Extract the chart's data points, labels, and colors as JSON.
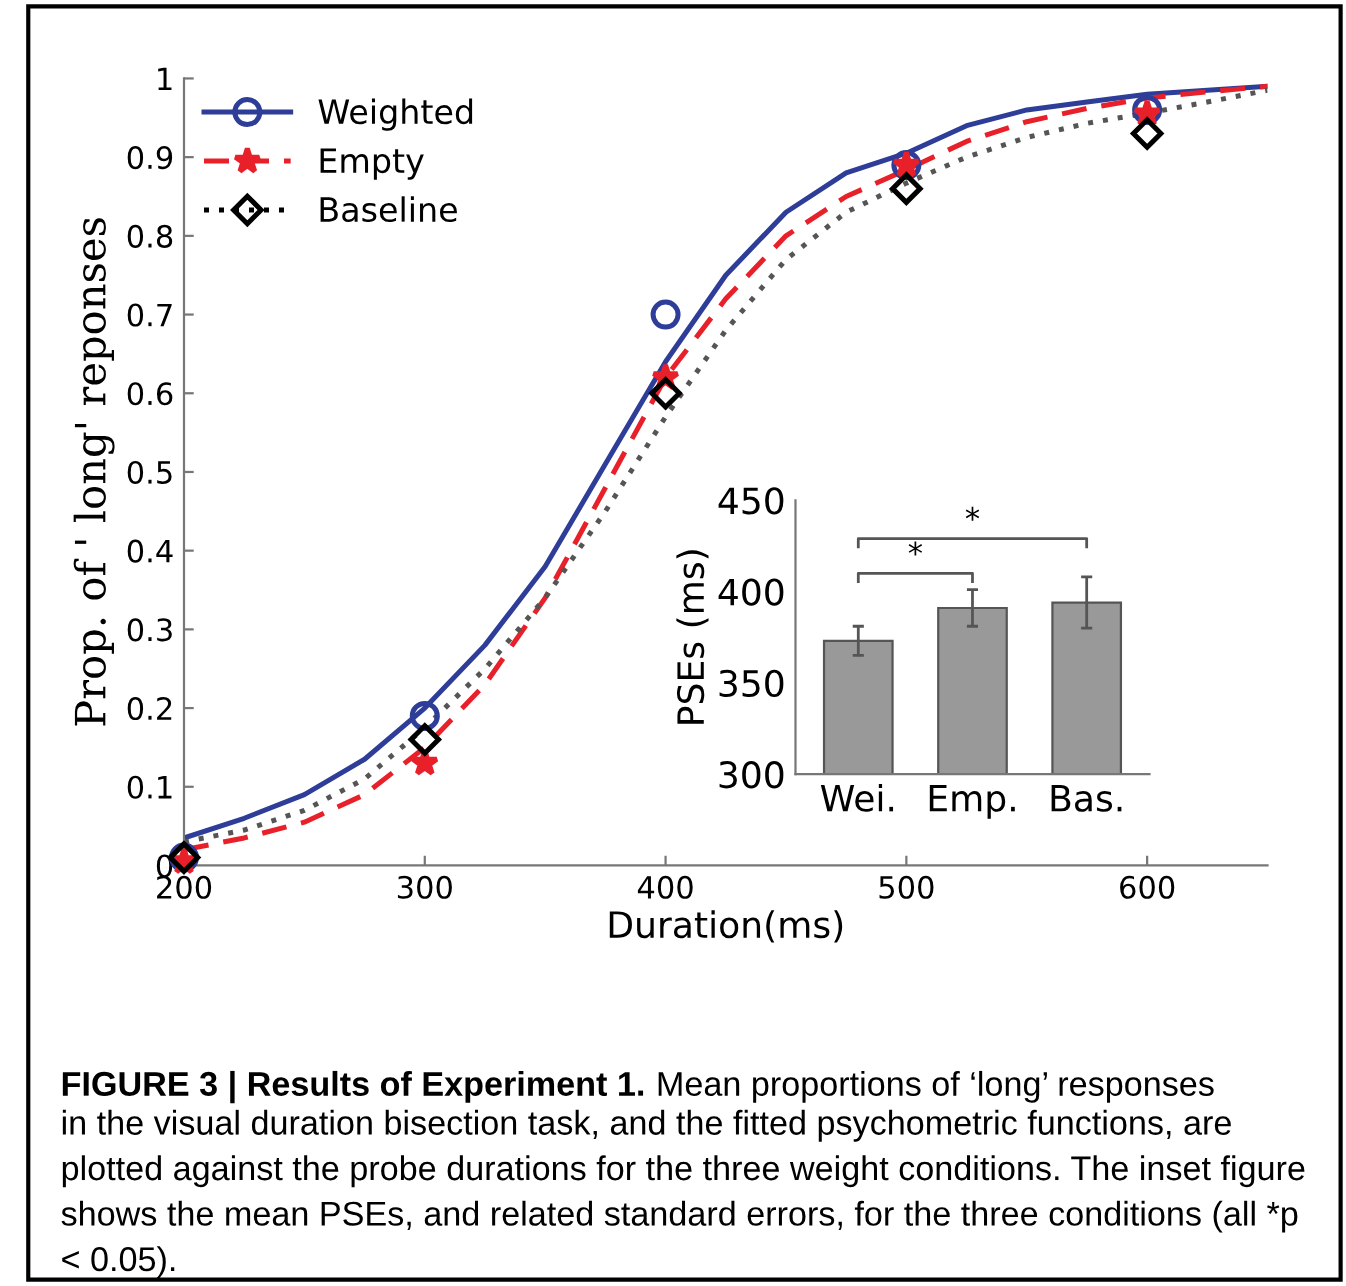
{
  "chart_data": [
    {
      "type": "scatter",
      "xlabel": "Duration(ms)",
      "ylabel": "Prop. of ' long' reponses",
      "xlim": [
        200,
        650
      ],
      "xticks": [
        200,
        300,
        400,
        500,
        600
      ],
      "ylim": [
        0,
        1
      ],
      "yticks": [
        0,
        0.1,
        0.2,
        0.3,
        0.4,
        0.5,
        0.6,
        0.7,
        0.8,
        0.9,
        1
      ],
      "legend": "top left",
      "grid": false,
      "series": [
        {
          "type": "scatter",
          "name": "Weighted",
          "color": "#2e3d98",
          "marker": "circle",
          "line_style": "solid",
          "x": [
            200,
            300,
            400,
            500,
            600
          ],
          "values": [
            0.01,
            0.19,
            0.7,
            0.89,
            0.96
          ]
        },
        {
          "type": "scatter",
          "name": "Empty",
          "color": "#e8202a",
          "marker": "star",
          "line_style": "dashed",
          "x": [
            200,
            300,
            400,
            500,
            600
          ],
          "values": [
            0.005,
            0.13,
            0.62,
            0.89,
            0.955
          ]
        },
        {
          "type": "scatter",
          "name": "Baseline",
          "color": "#000000",
          "marker": "diamond",
          "line_style": "dotted",
          "x": [
            200,
            300,
            400,
            500,
            600
          ],
          "values": [
            0.01,
            0.16,
            0.6,
            0.86,
            0.93
          ]
        },
        {
          "type": "line",
          "color": "#2e3d98",
          "line_style": "solid",
          "x": [
            200,
            225,
            250,
            275,
            300,
            325,
            350,
            375,
            400,
            425,
            450,
            475,
            500,
            525,
            550,
            575,
            600,
            625,
            650
          ],
          "values": [
            0.035,
            0.06,
            0.09,
            0.135,
            0.2,
            0.28,
            0.38,
            0.51,
            0.64,
            0.75,
            0.83,
            0.88,
            0.905,
            0.94,
            0.96,
            0.97,
            0.98,
            0.985,
            0.99
          ]
        },
        {
          "type": "line",
          "color": "#e8202a",
          "line_style": "dashed",
          "x": [
            200,
            225,
            250,
            275,
            300,
            325,
            350,
            375,
            400,
            425,
            450,
            475,
            500,
            525,
            550,
            575,
            600,
            625,
            650
          ],
          "values": [
            0.02,
            0.035,
            0.055,
            0.09,
            0.15,
            0.23,
            0.34,
            0.48,
            0.62,
            0.72,
            0.8,
            0.85,
            0.884,
            0.92,
            0.945,
            0.962,
            0.975,
            0.983,
            0.99
          ]
        },
        {
          "type": "line",
          "color": "#555555",
          "line_style": "dotted",
          "x": [
            200,
            225,
            250,
            275,
            300,
            325,
            350,
            375,
            400,
            425,
            450,
            475,
            500,
            525,
            550,
            575,
            600,
            625,
            650
          ],
          "values": [
            0.03,
            0.045,
            0.07,
            0.11,
            0.175,
            0.25,
            0.34,
            0.45,
            0.57,
            0.68,
            0.77,
            0.83,
            0.867,
            0.9,
            0.925,
            0.943,
            0.956,
            0.97,
            0.985
          ]
        }
      ],
      "annotations": [
        "FIGURE 3 | Results of Experiment 1.",
        "Mean proportions of ‘long’ responses",
        "in the visual duration bisection task, and the fitted psychometric functions, are plotted against the probe durations for the three weight conditions. The inset figure shows the mean PSEs, and related standard errors, for the three conditions (all *p < 0.05)."
      ]
    },
    {
      "type": "bar",
      "ylabel": "PSEs (ms)",
      "categories": [
        "Wei.",
        "Emp.",
        "Bas."
      ],
      "values": [
        373,
        391,
        394
      ],
      "errors": [
        8,
        10,
        14
      ],
      "color": "#999999",
      "ylim": [
        300,
        450
      ],
      "yticks": [
        300,
        350,
        400,
        450
      ],
      "grid": false,
      "annotations": [
        "*",
        "*"
      ]
    }
  ]
}
